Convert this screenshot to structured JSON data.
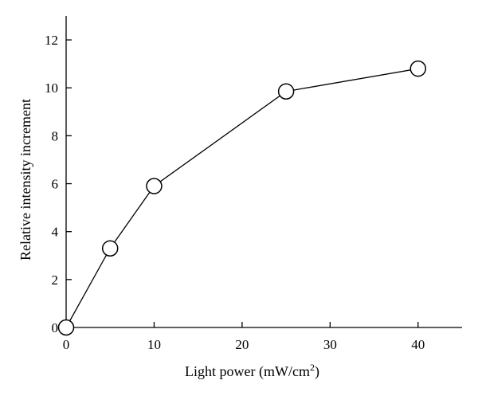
{
  "chart_data": {
    "type": "line",
    "title": "",
    "xlabel": "Light power (mW/cm",
    "xlabel_superscript": "2",
    "xlabel_suffix": ")",
    "ylabel": "Relative intensity increment",
    "xlim": [
      0,
      45
    ],
    "ylim": [
      0,
      13
    ],
    "xticks": [
      0,
      10,
      20,
      30,
      40
    ],
    "yticks": [
      0,
      2,
      4,
      6,
      8,
      10,
      12
    ],
    "grid": false,
    "legend": "none",
    "series": [
      {
        "x": [
          0,
          5,
          10,
          25,
          40
        ],
        "y": [
          0,
          3.3,
          5.9,
          9.85,
          10.8
        ],
        "marker": "open-circle",
        "color": "#000000"
      }
    ]
  }
}
